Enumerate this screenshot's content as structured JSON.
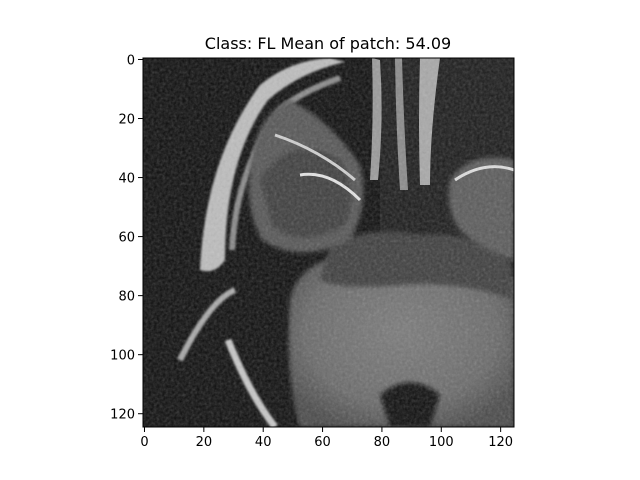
{
  "chart_data": {
    "type": "heatmap",
    "title": "Class: FL    Mean of patch: 54.09",
    "colormap": "gray",
    "xlim": [
      0,
      124
    ],
    "ylim": [
      124,
      0
    ],
    "xticks": [
      0,
      20,
      40,
      60,
      80,
      100,
      120
    ],
    "yticks": [
      0,
      20,
      40,
      60,
      80,
      100,
      120
    ],
    "xtick_labels": [
      "0",
      "20",
      "40",
      "60",
      "80",
      "100",
      "120"
    ],
    "ytick_labels": [
      "0",
      "20",
      "40",
      "60",
      "80",
      "100",
      "120"
    ],
    "grid": false,
    "image_content": "grayscale axial MRI brain patch"
  }
}
